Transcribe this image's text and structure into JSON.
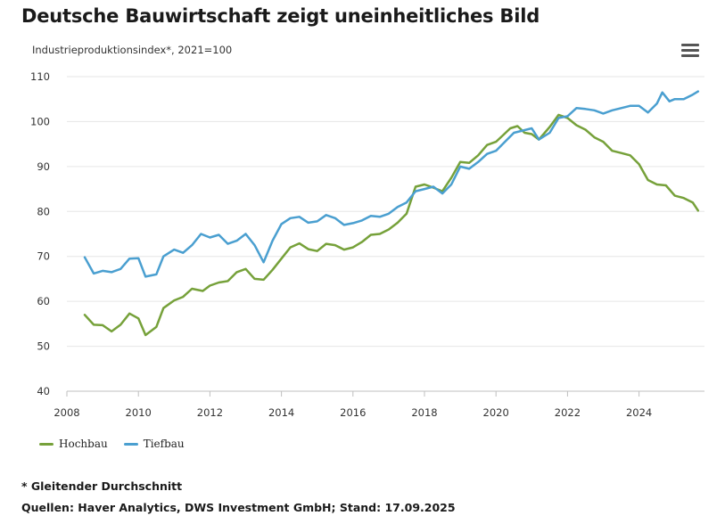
{
  "header": {
    "title": "Deutsche Bauwirtschaft zeigt uneinheitliches Bild",
    "subtitle": "Industrieproduktionsindex*, 2021=100",
    "menu_icon": "hamburger-menu-icon"
  },
  "footer": {
    "footnote": "* Gleitender Durchschnitt",
    "source": "Quellen: Haver Analytics, DWS Investment GmbH; Stand: 17.09.2025"
  },
  "chart_data": {
    "type": "line",
    "xlim": [
      2008,
      2025.8
    ],
    "ylim": [
      40,
      110
    ],
    "x_ticks": [
      "2008",
      "2010",
      "2012",
      "2014",
      "2016",
      "2018",
      "2020",
      "2022",
      "2024"
    ],
    "y_ticks": [
      "40",
      "50",
      "60",
      "70",
      "80",
      "90",
      "100",
      "110"
    ],
    "grid": "horizontal",
    "legend_position": "bottom-left",
    "series": [
      {
        "name": "Hochbau",
        "color": "#76a13a",
        "points": [
          [
            2008.5,
            57
          ],
          [
            2008.75,
            54.8
          ],
          [
            2009.0,
            54.7
          ],
          [
            2009.25,
            53.3
          ],
          [
            2009.5,
            54.8
          ],
          [
            2009.75,
            57.3
          ],
          [
            2010.0,
            56.2
          ],
          [
            2010.2,
            52.5
          ],
          [
            2010.5,
            54.3
          ],
          [
            2010.7,
            58.5
          ],
          [
            2011.0,
            60.2
          ],
          [
            2011.25,
            61.0
          ],
          [
            2011.5,
            62.8
          ],
          [
            2011.8,
            62.3
          ],
          [
            2012.0,
            63.5
          ],
          [
            2012.25,
            64.2
          ],
          [
            2012.5,
            64.5
          ],
          [
            2012.75,
            66.5
          ],
          [
            2013.0,
            67.2
          ],
          [
            2013.25,
            65.0
          ],
          [
            2013.5,
            64.8
          ],
          [
            2013.75,
            67.0
          ],
          [
            2014.0,
            69.5
          ],
          [
            2014.25,
            72.0
          ],
          [
            2014.5,
            72.9
          ],
          [
            2014.75,
            71.6
          ],
          [
            2015.0,
            71.2
          ],
          [
            2015.25,
            72.8
          ],
          [
            2015.5,
            72.5
          ],
          [
            2015.75,
            71.5
          ],
          [
            2016.0,
            72.0
          ],
          [
            2016.25,
            73.2
          ],
          [
            2016.5,
            74.8
          ],
          [
            2016.75,
            75.0
          ],
          [
            2017.0,
            76.0
          ],
          [
            2017.25,
            77.5
          ],
          [
            2017.5,
            79.5
          ],
          [
            2017.75,
            85.5
          ],
          [
            2018.0,
            86.0
          ],
          [
            2018.25,
            85.3
          ],
          [
            2018.5,
            84.5
          ],
          [
            2018.75,
            87.5
          ],
          [
            2019.0,
            91.0
          ],
          [
            2019.25,
            90.8
          ],
          [
            2019.5,
            92.5
          ],
          [
            2019.75,
            94.8
          ],
          [
            2020.0,
            95.5
          ],
          [
            2020.2,
            97.0
          ],
          [
            2020.4,
            98.5
          ],
          [
            2020.6,
            99.0
          ],
          [
            2020.8,
            97.5
          ],
          [
            2021.0,
            97.2
          ],
          [
            2021.2,
            96.0
          ],
          [
            2021.5,
            98.8
          ],
          [
            2021.75,
            101.5
          ],
          [
            2022.0,
            100.8
          ],
          [
            2022.25,
            99.2
          ],
          [
            2022.5,
            98.2
          ],
          [
            2022.75,
            96.5
          ],
          [
            2023.0,
            95.5
          ],
          [
            2023.25,
            93.5
          ],
          [
            2023.5,
            93.0
          ],
          [
            2023.75,
            92.5
          ],
          [
            2024.0,
            90.5
          ],
          [
            2024.25,
            87.0
          ],
          [
            2024.5,
            86.0
          ],
          [
            2024.75,
            85.8
          ],
          [
            2025.0,
            83.5
          ],
          [
            2025.25,
            83.0
          ],
          [
            2025.5,
            82.0
          ],
          [
            2025.65,
            80.2
          ]
        ]
      },
      {
        "name": "Tiefbau",
        "color": "#4a9fd0",
        "points": [
          [
            2008.5,
            69.8
          ],
          [
            2008.75,
            66.2
          ],
          [
            2009.0,
            66.8
          ],
          [
            2009.25,
            66.5
          ],
          [
            2009.5,
            67.2
          ],
          [
            2009.75,
            69.5
          ],
          [
            2010.0,
            69.6
          ],
          [
            2010.2,
            65.5
          ],
          [
            2010.5,
            66.0
          ],
          [
            2010.7,
            70.0
          ],
          [
            2011.0,
            71.5
          ],
          [
            2011.25,
            70.8
          ],
          [
            2011.5,
            72.5
          ],
          [
            2011.75,
            75.0
          ],
          [
            2012.0,
            74.2
          ],
          [
            2012.25,
            74.8
          ],
          [
            2012.5,
            72.8
          ],
          [
            2012.75,
            73.5
          ],
          [
            2013.0,
            75.0
          ],
          [
            2013.25,
            72.5
          ],
          [
            2013.5,
            68.7
          ],
          [
            2013.75,
            73.5
          ],
          [
            2014.0,
            77.2
          ],
          [
            2014.25,
            78.5
          ],
          [
            2014.5,
            78.8
          ],
          [
            2014.75,
            77.5
          ],
          [
            2015.0,
            77.8
          ],
          [
            2015.25,
            79.2
          ],
          [
            2015.5,
            78.5
          ],
          [
            2015.75,
            77.0
          ],
          [
            2016.0,
            77.4
          ],
          [
            2016.25,
            78.0
          ],
          [
            2016.5,
            79.0
          ],
          [
            2016.75,
            78.8
          ],
          [
            2017.0,
            79.5
          ],
          [
            2017.25,
            81.0
          ],
          [
            2017.5,
            82.0
          ],
          [
            2017.75,
            84.5
          ],
          [
            2018.0,
            85.0
          ],
          [
            2018.25,
            85.5
          ],
          [
            2018.5,
            84.0
          ],
          [
            2018.75,
            86.0
          ],
          [
            2019.0,
            90.0
          ],
          [
            2019.25,
            89.5
          ],
          [
            2019.5,
            91.0
          ],
          [
            2019.75,
            92.8
          ],
          [
            2020.0,
            93.5
          ],
          [
            2020.25,
            95.5
          ],
          [
            2020.5,
            97.5
          ],
          [
            2020.75,
            98.0
          ],
          [
            2021.0,
            98.5
          ],
          [
            2021.2,
            96.0
          ],
          [
            2021.5,
            97.5
          ],
          [
            2021.75,
            100.8
          ],
          [
            2022.0,
            101.2
          ],
          [
            2022.25,
            103.0
          ],
          [
            2022.5,
            102.8
          ],
          [
            2022.75,
            102.5
          ],
          [
            2023.0,
            101.8
          ],
          [
            2023.25,
            102.5
          ],
          [
            2023.5,
            103.0
          ],
          [
            2023.75,
            103.5
          ],
          [
            2024.0,
            103.5
          ],
          [
            2024.25,
            102.0
          ],
          [
            2024.5,
            104.0
          ],
          [
            2024.65,
            106.5
          ],
          [
            2024.85,
            104.5
          ],
          [
            2025.0,
            105.0
          ],
          [
            2025.25,
            105.0
          ],
          [
            2025.5,
            106.0
          ],
          [
            2025.65,
            106.7
          ]
        ]
      }
    ]
  }
}
